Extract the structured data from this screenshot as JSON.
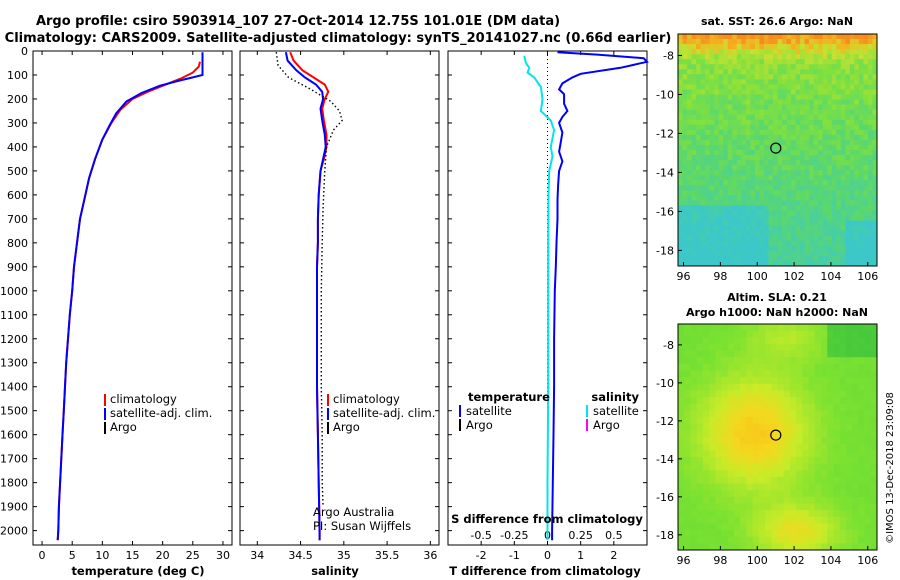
{
  "header": {
    "title_line1": "Argo profile: csiro 5903914_107 27-Oct-2014 12.75S 101.01E (DM data)",
    "title_line2": "Climatology: CARS2009. Satellite-adjusted climatology: synTS_20141027.nc (0.66d earlier)"
  },
  "credit": "©IMOS 13-Dec-2018 23:09:08",
  "colors": {
    "climatology": "#ff0000",
    "satellite": "#0000ff",
    "argo": "#000000",
    "s_satellite": "#00e5ee",
    "s_argo": "#ff00ff"
  },
  "depth_axis": {
    "ticks": [
      "0",
      "100",
      "200",
      "300",
      "400",
      "500",
      "600",
      "700",
      "800",
      "900",
      "1000",
      "1100",
      "1200",
      "1300",
      "1400",
      "1500",
      "1600",
      "1700",
      "1800",
      "1900",
      "2000"
    ],
    "range": [
      0,
      2060
    ],
    "inverted": true
  },
  "chart_data": [
    {
      "type": "line",
      "id": "temperature_profile",
      "xlabel": "temperature (deg C)",
      "xlim": [
        -1.5,
        31.5
      ],
      "x_ticks": [
        "0",
        "5",
        "10",
        "15",
        "20",
        "25",
        "30"
      ],
      "legend": [
        "climatology",
        "satellite-adj. clim.",
        "Argo"
      ],
      "series": [
        {
          "name": "climatology",
          "color": "#ff0000",
          "points": [
            [
              26.2,
              45
            ],
            [
              26.0,
              65
            ],
            [
              25.0,
              90
            ],
            [
              23.0,
              115
            ],
            [
              20.5,
              140
            ],
            [
              17.5,
              170
            ],
            [
              15.0,
              200
            ],
            [
              13.0,
              245
            ],
            [
              11.5,
              300
            ],
            [
              10.0,
              370
            ],
            [
              8.8,
              450
            ],
            [
              7.8,
              530
            ],
            [
              7.0,
              620
            ],
            [
              6.3,
              700
            ],
            [
              5.8,
              800
            ],
            [
              5.3,
              900
            ],
            [
              5.0,
              1000
            ],
            [
              4.6,
              1100
            ],
            [
              4.3,
              1200
            ],
            [
              4.0,
              1300
            ],
            [
              3.8,
              1400
            ],
            [
              3.6,
              1500
            ],
            [
              3.4,
              1600
            ],
            [
              3.2,
              1700
            ],
            [
              3.0,
              1800
            ],
            [
              2.8,
              1900
            ],
            [
              2.7,
              2000
            ],
            [
              2.6,
              2040
            ]
          ]
        },
        {
          "name": "satellite-adj. clim.",
          "color": "#0000ff",
          "points": [
            [
              26.6,
              5
            ],
            [
              26.6,
              100
            ],
            [
              25.0,
              110
            ],
            [
              22.5,
              125
            ],
            [
              19.5,
              145
            ],
            [
              16.5,
              175
            ],
            [
              14.0,
              210
            ],
            [
              12.3,
              260
            ],
            [
              11.2,
              310
            ],
            [
              10.0,
              370
            ],
            [
              8.8,
              450
            ],
            [
              7.8,
              530
            ],
            [
              7.0,
              620
            ],
            [
              6.3,
              700
            ],
            [
              5.8,
              800
            ],
            [
              5.3,
              900
            ],
            [
              5.0,
              1000
            ],
            [
              4.6,
              1100
            ],
            [
              4.3,
              1200
            ],
            [
              4.0,
              1300
            ],
            [
              3.8,
              1400
            ],
            [
              3.6,
              1500
            ],
            [
              3.4,
              1600
            ],
            [
              3.2,
              1700
            ],
            [
              3.0,
              1800
            ],
            [
              2.8,
              1900
            ],
            [
              2.7,
              2000
            ],
            [
              2.6,
              2040
            ]
          ]
        }
      ]
    },
    {
      "type": "line",
      "id": "salinity_profile",
      "xlabel": "salinity",
      "xlim": [
        33.8,
        36.1
      ],
      "x_ticks": [
        "34",
        "34.5",
        "35",
        "35.5",
        "36"
      ],
      "legend": [
        "climatology",
        "satellite-adj. clim.",
        "Argo"
      ],
      "annotation_line1": "Argo Australia",
      "annotation_line2": "PI: Susan Wijffels",
      "series": [
        {
          "name": "climatology",
          "color": "#ff0000",
          "points": [
            [
              34.38,
              5
            ],
            [
              34.42,
              40
            ],
            [
              34.52,
              80
            ],
            [
              34.65,
              110
            ],
            [
              34.78,
              140
            ],
            [
              34.82,
              170
            ],
            [
              34.78,
              200
            ],
            [
              34.75,
              240
            ],
            [
              34.77,
              290
            ],
            [
              34.8,
              350
            ],
            [
              34.8,
              400
            ],
            [
              34.77,
              450
            ],
            [
              34.73,
              500
            ],
            [
              34.71,
              600
            ],
            [
              34.7,
              700
            ],
            [
              34.7,
              800
            ],
            [
              34.69,
              900
            ],
            [
              34.69,
              1000
            ],
            [
              34.69,
              1200
            ],
            [
              34.69,
              1400
            ],
            [
              34.7,
              1600
            ],
            [
              34.71,
              1800
            ],
            [
              34.72,
              2000
            ],
            [
              34.72,
              2040
            ]
          ]
        },
        {
          "name": "satellite-adj. clim.",
          "color": "#0000ff",
          "points": [
            [
              34.33,
              5
            ],
            [
              34.35,
              40
            ],
            [
              34.45,
              80
            ],
            [
              34.55,
              110
            ],
            [
              34.68,
              140
            ],
            [
              34.75,
              170
            ],
            [
              34.76,
              200
            ],
            [
              34.73,
              240
            ],
            [
              34.75,
              290
            ],
            [
              34.78,
              350
            ],
            [
              34.79,
              400
            ],
            [
              34.76,
              450
            ],
            [
              34.73,
              500
            ],
            [
              34.71,
              600
            ],
            [
              34.7,
              700
            ],
            [
              34.7,
              800
            ],
            [
              34.69,
              900
            ],
            [
              34.69,
              1000
            ],
            [
              34.69,
              1200
            ],
            [
              34.69,
              1400
            ],
            [
              34.7,
              1600
            ],
            [
              34.71,
              1800
            ],
            [
              34.72,
              2000
            ],
            [
              34.72,
              2040
            ]
          ]
        },
        {
          "name": "Argo",
          "color": "#000000",
          "dotted": true,
          "points": [
            [
              34.22,
              5
            ],
            [
              34.24,
              60
            ],
            [
              34.36,
              110
            ],
            [
              34.62,
              160
            ],
            [
              34.85,
              210
            ],
            [
              34.95,
              250
            ],
            [
              34.98,
              290
            ],
            [
              34.88,
              330
            ],
            [
              34.8,
              400
            ],
            [
              34.78,
              500
            ],
            [
              34.76,
              650
            ],
            [
              34.75,
              800
            ],
            [
              34.74,
              1000
            ],
            [
              34.74,
              1200
            ],
            [
              34.74,
              1400
            ],
            [
              34.75,
              1600
            ],
            [
              34.75,
              1800
            ],
            [
              34.76,
              1900
            ]
          ]
        }
      ]
    },
    {
      "type": "line",
      "id": "difference_profile",
      "xlabel": "T difference from climatology",
      "xlabel_top": "S difference from climatology",
      "xlim": [
        -3.0,
        3.0
      ],
      "x_ticks": [
        "-2",
        "-1",
        "0",
        "1",
        "2"
      ],
      "x_ticks_top": [
        "-0.5",
        "-0.25",
        "0",
        "0.25",
        "0.5"
      ],
      "legend_temperature_title": "temperature",
      "legend_salinity_title": "salinity",
      "legend_temperature": [
        "satellite",
        "Argo"
      ],
      "legend_salinity": [
        "satellite",
        "Argo"
      ],
      "series": [
        {
          "name": "satellite",
          "group": "temperature",
          "color": "#0000ff",
          "points": [
            [
              0.3,
              5
            ],
            [
              1.5,
              15
            ],
            [
              2.9,
              30
            ],
            [
              3.0,
              45
            ],
            [
              2.2,
              70
            ],
            [
              1.0,
              95
            ],
            [
              0.75,
              110
            ],
            [
              0.45,
              135
            ],
            [
              0.35,
              160
            ],
            [
              0.5,
              180
            ],
            [
              0.5,
              220
            ],
            [
              0.6,
              250
            ],
            [
              0.45,
              275
            ],
            [
              0.35,
              300
            ],
            [
              0.45,
              340
            ],
            [
              0.4,
              380
            ],
            [
              0.35,
              420
            ],
            [
              0.45,
              460
            ],
            [
              0.35,
              500
            ],
            [
              0.32,
              560
            ],
            [
              0.3,
              620
            ],
            [
              0.3,
              700
            ],
            [
              0.27,
              800
            ],
            [
              0.25,
              900
            ],
            [
              0.22,
              1000
            ],
            [
              0.2,
              1200
            ],
            [
              0.2,
              1400
            ],
            [
              0.18,
              1600
            ],
            [
              0.16,
              1800
            ],
            [
              0.14,
              2000
            ],
            [
              0.14,
              2040
            ]
          ]
        },
        {
          "name": "satellite",
          "group": "salinity",
          "color": "#00e5ee",
          "points": [
            [
              -0.7,
              20
            ],
            [
              -0.65,
              50
            ],
            [
              -0.55,
              70
            ],
            [
              -0.6,
              90
            ],
            [
              -0.4,
              110
            ],
            [
              -0.2,
              150
            ],
            [
              -0.15,
              200
            ],
            [
              -0.2,
              250
            ],
            [
              0.1,
              290
            ],
            [
              0.2,
              330
            ],
            [
              0.1,
              400
            ],
            [
              0.15,
              440
            ],
            [
              0.05,
              500
            ],
            [
              0.03,
              600
            ],
            [
              0.02,
              800
            ],
            [
              0.02,
              1000
            ],
            [
              0.02,
              1400
            ],
            [
              0.0,
              1800
            ],
            [
              0.0,
              2040
            ]
          ]
        }
      ]
    }
  ],
  "maps": {
    "sst": {
      "title": "sat. SST: 26.6 Argo: NaN",
      "x_ticks": [
        "96",
        "98",
        "100",
        "102",
        "104",
        "106"
      ],
      "y_ticks": [
        "-8",
        "-10",
        "-12",
        "-14",
        "-16",
        "-18"
      ],
      "xlim": [
        95.7,
        106.5
      ],
      "ylim": [
        -18.8,
        -6.9
      ],
      "marker": {
        "lon": 101.01,
        "lat": -12.75
      }
    },
    "sla": {
      "title_line1": "Altim. SLA: 0.21",
      "title_line2": "Argo h1000: NaN h2000: NaN",
      "x_ticks": [
        "96",
        "98",
        "100",
        "102",
        "104",
        "106"
      ],
      "y_ticks": [
        "-8",
        "-10",
        "-12",
        "-14",
        "-16",
        "-18"
      ],
      "xlim": [
        95.7,
        106.5
      ],
      "ylim": [
        -18.8,
        -6.9
      ],
      "marker": {
        "lon": 101.01,
        "lat": -12.75
      }
    }
  }
}
